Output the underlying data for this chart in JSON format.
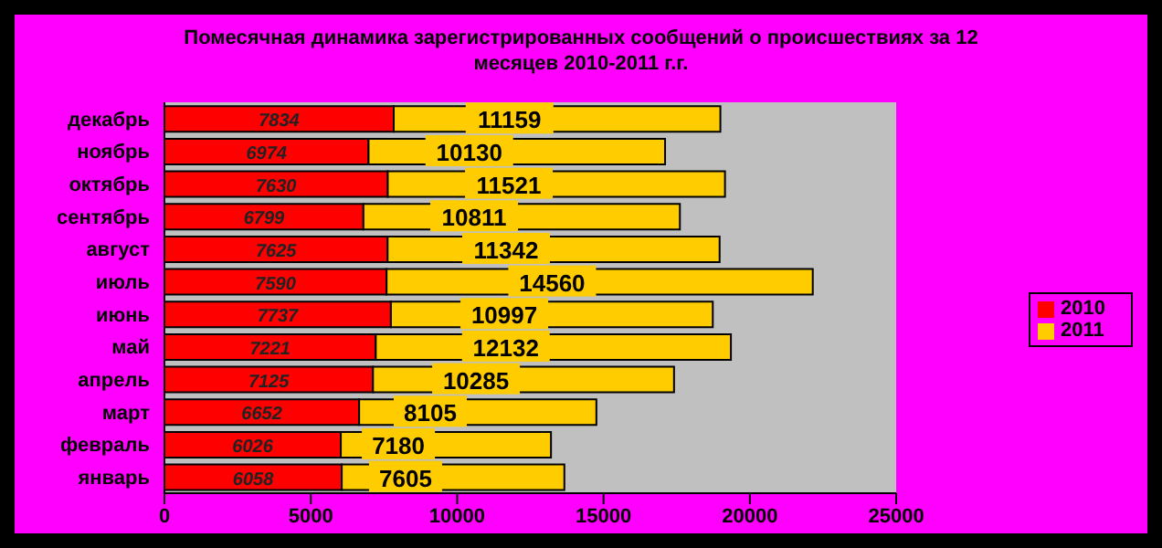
{
  "chart_data": {
    "type": "bar",
    "orientation": "horizontal",
    "stacked": true,
    "title": "Помесячная динамика зарегистрированных сообщений о происшествиях за 12 месяцев 2010-2011 г.г.",
    "categories": [
      "декабрь",
      "ноябрь",
      "октябрь",
      "сентябрь",
      "август",
      "июль",
      "июнь",
      "май",
      "апрель",
      "март",
      "февраль",
      "январь"
    ],
    "series": [
      {
        "name": "2010",
        "color": "#ff0000",
        "values": [
          7834,
          6974,
          7630,
          6799,
          7625,
          7590,
          7737,
          7221,
          7125,
          6652,
          6026,
          6058
        ]
      },
      {
        "name": "2011",
        "color": "#ffcc00",
        "values": [
          11159,
          10130,
          11521,
          10811,
          11342,
          14560,
          10997,
          12132,
          10285,
          8105,
          7180,
          7605
        ]
      }
    ],
    "xlim": [
      0,
      25000
    ],
    "xticks": [
      0,
      5000,
      10000,
      15000,
      20000,
      25000
    ],
    "legend": "right",
    "data_labels": true
  }
}
